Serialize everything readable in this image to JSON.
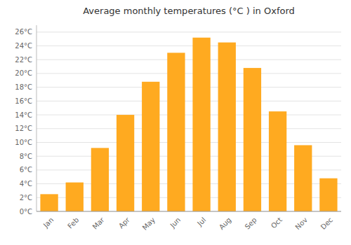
{
  "chart_data": {
    "type": "bar",
    "title": "Average monthly temperatures (°C ) in Oxford",
    "categories": [
      "Jan",
      "Feb",
      "Mar",
      "Apr",
      "May",
      "Jun",
      "Jul",
      "Aug",
      "Sep",
      "Oct",
      "Nov",
      "Dec"
    ],
    "values": [
      2.5,
      4.2,
      9.2,
      14.0,
      18.8,
      23.0,
      25.2,
      24.5,
      20.8,
      14.5,
      9.6,
      4.8
    ],
    "color": "#FFAA20",
    "ylim": [
      0,
      27
    ],
    "yticks": [
      {
        "value": 0,
        "label": "0°C"
      },
      {
        "value": 2,
        "label": "2°C"
      },
      {
        "value": 4,
        "label": "4°C"
      },
      {
        "value": 6,
        "label": "6°C"
      },
      {
        "value": 8,
        "label": "8°C"
      },
      {
        "value": 10,
        "label": "10°C"
      },
      {
        "value": 12,
        "label": "12°C"
      },
      {
        "value": 14,
        "label": "14°C"
      },
      {
        "value": 16,
        "label": "16°C"
      },
      {
        "value": 18,
        "label": "18°C"
      },
      {
        "value": 20,
        "label": "20°C"
      },
      {
        "value": 22,
        "label": "22°C"
      },
      {
        "value": 24,
        "label": "24°C"
      },
      {
        "value": 26,
        "label": "26°C"
      }
    ],
    "grid": true
  }
}
